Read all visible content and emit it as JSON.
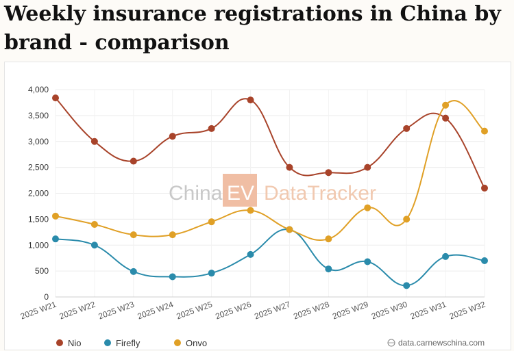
{
  "page": {
    "title": "Weekly insurance registrations in China by brand - comparison",
    "watermark": {
      "part1": "China",
      "part2": "EV",
      "part3": "DataTracker"
    },
    "source": "data.carnewschina.com",
    "source_icon": "globe-icon"
  },
  "chart_data": {
    "type": "line",
    "title": "Weekly insurance registrations in China by brand - comparison",
    "categories": [
      "2025 W21",
      "2025 W22",
      "2025 W23",
      "2025 W24",
      "2025 W25",
      "2025 W26",
      "2025 W27",
      "2025 W28",
      "2025 W29",
      "2025 W30",
      "2025 W31",
      "2025 W32"
    ],
    "series": [
      {
        "name": "Nio",
        "color": "#a8432a",
        "values": [
          3840,
          3000,
          2620,
          3100,
          3250,
          3800,
          2500,
          2400,
          2500,
          3250,
          3450,
          2100
        ]
      },
      {
        "name": "Firefly",
        "color": "#2a8bab",
        "values": [
          1120,
          1000,
          490,
          390,
          460,
          820,
          1300,
          540,
          680,
          220,
          780,
          700
        ]
      },
      {
        "name": "Onvo",
        "color": "#e0a026",
        "values": [
          1560,
          1400,
          1200,
          1200,
          1450,
          1670,
          1300,
          1120,
          1720,
          1500,
          3700,
          3200
        ]
      }
    ],
    "y_ticks": [
      "0",
      "500",
      "1,000",
      "1,500",
      "2,000",
      "2,500",
      "3,000",
      "3,500",
      "4,000"
    ],
    "ylim": [
      0,
      4000
    ],
    "grid": true,
    "legend_position": "bottom-left",
    "xlabel": "",
    "ylabel": ""
  }
}
